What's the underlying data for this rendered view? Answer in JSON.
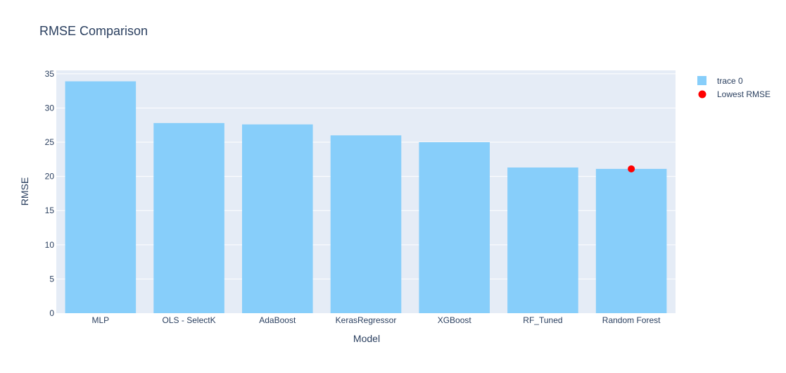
{
  "chart_data": {
    "type": "bar",
    "title": "RMSE Comparison",
    "xlabel": "Model",
    "ylabel": "RMSE",
    "categories": [
      "MLP",
      "OLS - SelectK",
      "AdaBoost",
      "KerasRegressor",
      "XGBoost",
      "RF_Tuned",
      "Random Forest"
    ],
    "series": [
      {
        "name": "trace 0",
        "type": "bar",
        "color": "#87CEFA",
        "values": [
          33.9,
          27.8,
          27.6,
          26.0,
          25.0,
          21.3,
          21.1
        ]
      },
      {
        "name": "Lowest RMSE",
        "type": "scatter",
        "color": "#ff0000",
        "points": [
          {
            "category": "Random Forest",
            "value": 21.1
          }
        ]
      }
    ],
    "ylim": [
      0,
      35.5
    ],
    "yticks": [
      0,
      5,
      10,
      15,
      20,
      25,
      30,
      35
    ],
    "grid": true,
    "legend_position": "top-right",
    "colors": {
      "plot_bg": "#E5ECF6",
      "grid": "#ffffff",
      "text": "#2a3f5f"
    }
  }
}
